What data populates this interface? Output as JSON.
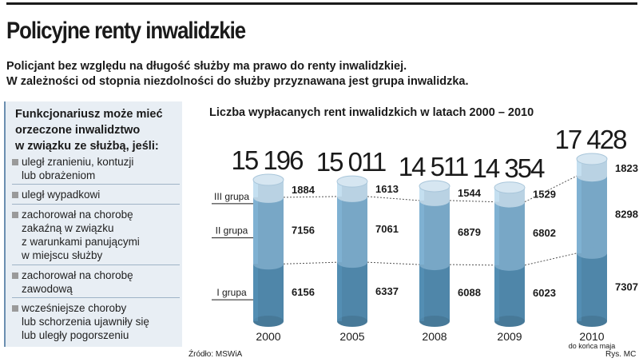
{
  "header": {
    "title": "Policyjne renty inwalidzkie",
    "lead": [
      "Policjant bez względu na długość służby ma prawo do renty inwalidzkiej.",
      "W zależności od stopnia niezdolności do służby przyznawana jest grupa inwalidzka."
    ]
  },
  "panel": {
    "title_lines": [
      "Funkcjonariusz może mieć",
      "orzeczone inwalidztwo",
      "w związku ze służbą, jeśli:"
    ],
    "conditions": [
      [
        "uległ zranieniu, kontuzji",
        "lub obrażeniom"
      ],
      [
        "uległ wypadkowi"
      ],
      [
        "zachorował na chorobę",
        "zakaźną w związku",
        "z warunkami panującymi",
        "w miejscu służby"
      ],
      [
        "zachorował na chorobę",
        "zawodową"
      ],
      [
        "wcześniejsze choroby",
        "lub schorzenia ujawniły się",
        "lub uległy pogorszeniu"
      ]
    ]
  },
  "footer": {
    "source": "Źródło: MSWiA",
    "credit": "Rys. MC"
  },
  "colors": {
    "group1": "#4f86a9",
    "group2": "#78a7c6",
    "group3": "#b9d2e3",
    "panel_bg": "#e8eef4"
  },
  "chart_data": {
    "type": "bar",
    "stacked": true,
    "title": "Liczba wypłacanych rent inwalidzkich w latach 2000 – 2010",
    "categories": [
      "2000",
      "2005",
      "2008",
      "2009",
      "2010"
    ],
    "category_notes": [
      "",
      "",
      "",
      "",
      "do końca maja"
    ],
    "totals": [
      "15 196",
      "15 011",
      "14 511",
      "14 354",
      "17 428"
    ],
    "series": [
      {
        "name": "I grupa",
        "values": [
          6156,
          6337,
          6088,
          6023,
          7307
        ]
      },
      {
        "name": "II grupa",
        "values": [
          7156,
          7061,
          6879,
          6802,
          8298
        ]
      },
      {
        "name": "III grupa",
        "values": [
          1884,
          1613,
          1544,
          1529,
          1823
        ]
      }
    ],
    "ylim": [
      0,
      17428
    ]
  }
}
